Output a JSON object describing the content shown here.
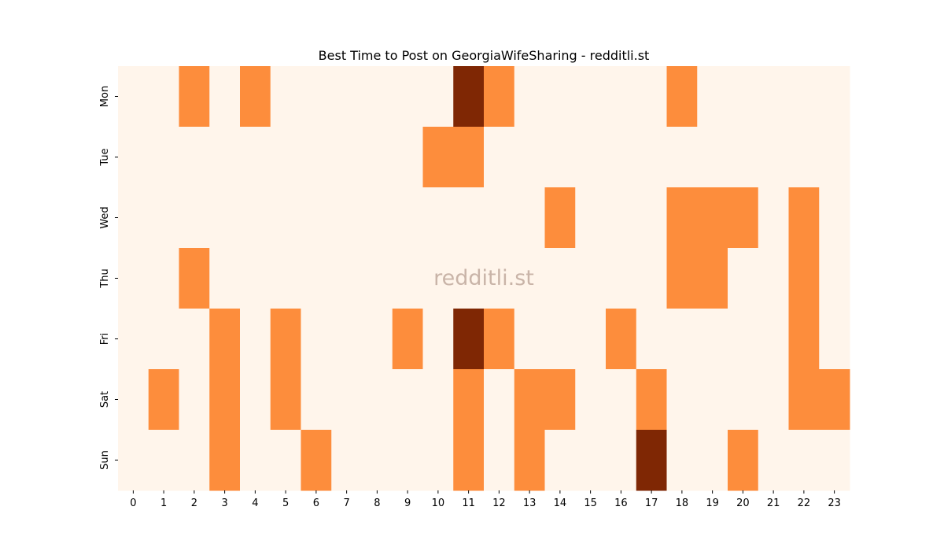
{
  "chart_data": {
    "type": "heatmap",
    "title": "Best Time to Post on GeorgiaWifeSharing - redditli.st",
    "watermark": "redditli.st",
    "x_categories": [
      "0",
      "1",
      "2",
      "3",
      "4",
      "5",
      "6",
      "7",
      "8",
      "9",
      "10",
      "11",
      "12",
      "13",
      "14",
      "15",
      "16",
      "17",
      "18",
      "19",
      "20",
      "21",
      "22",
      "23"
    ],
    "y_categories": [
      "Mon",
      "Tue",
      "Wed",
      "Thu",
      "Fri",
      "Sat",
      "Sun"
    ],
    "values": [
      [
        0,
        0,
        1,
        0,
        1,
        0,
        0,
        0,
        0,
        0,
        0,
        2,
        1,
        0,
        0,
        0,
        0,
        0,
        1,
        0,
        0,
        0,
        0,
        0
      ],
      [
        0,
        0,
        0,
        0,
        0,
        0,
        0,
        0,
        0,
        0,
        1,
        1,
        0,
        0,
        0,
        0,
        0,
        0,
        0,
        0,
        0,
        0,
        0,
        0
      ],
      [
        0,
        0,
        0,
        0,
        0,
        0,
        0,
        0,
        0,
        0,
        0,
        0,
        0,
        0,
        1,
        0,
        0,
        0,
        1,
        1,
        1,
        0,
        1,
        0
      ],
      [
        0,
        0,
        1,
        0,
        0,
        0,
        0,
        0,
        0,
        0,
        0,
        0,
        0,
        0,
        0,
        0,
        0,
        0,
        1,
        1,
        0,
        0,
        1,
        0
      ],
      [
        0,
        0,
        0,
        1,
        0,
        1,
        0,
        0,
        0,
        1,
        0,
        2,
        1,
        0,
        0,
        0,
        1,
        0,
        0,
        0,
        0,
        0,
        1,
        0
      ],
      [
        0,
        1,
        0,
        1,
        0,
        1,
        0,
        0,
        0,
        0,
        0,
        1,
        0,
        1,
        1,
        0,
        0,
        1,
        0,
        0,
        0,
        0,
        1,
        1
      ],
      [
        0,
        0,
        0,
        1,
        0,
        0,
        1,
        0,
        0,
        0,
        0,
        1,
        0,
        1,
        0,
        0,
        0,
        2,
        0,
        0,
        1,
        0,
        0,
        0
      ]
    ],
    "colors": [
      "#fff5eb",
      "#fd8d3c",
      "#7f2704"
    ]
  }
}
